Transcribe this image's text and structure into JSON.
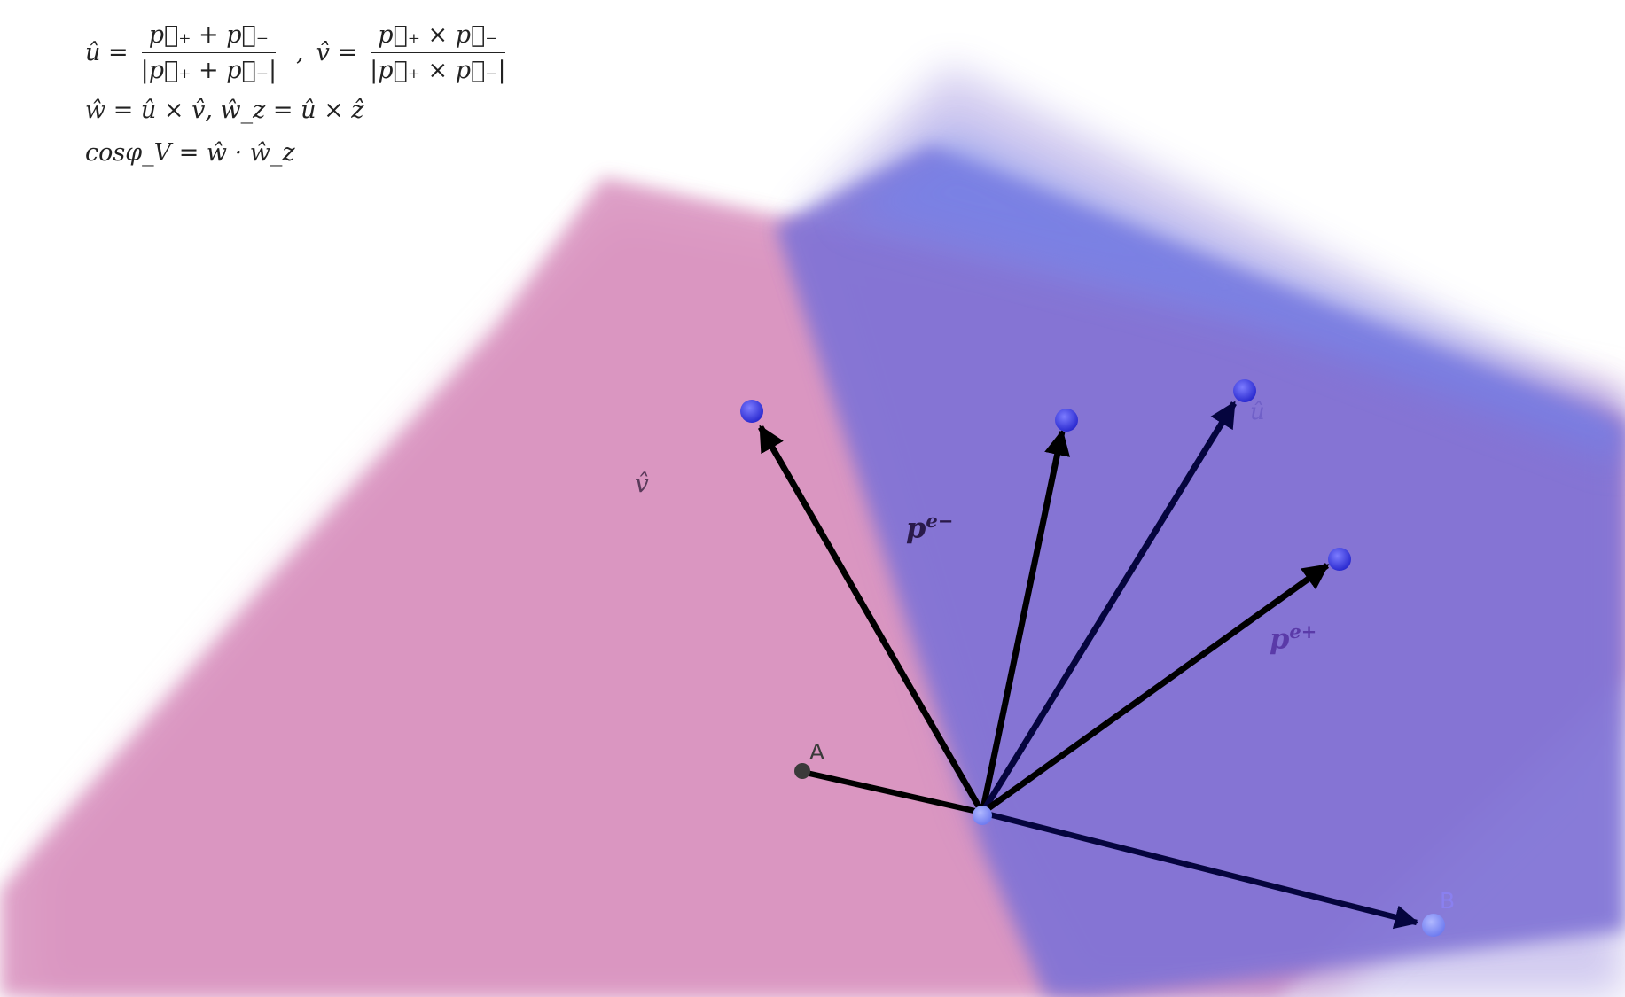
{
  "formulas": {
    "u_lhs": "û =",
    "u_num": "p⃗₊ + p⃗₋",
    "u_den": "|p⃗₊ + p⃗₋|",
    "sep": ",",
    "v_lhs": "v̂ =",
    "v_num": "p⃗₊ × p⃗₋",
    "v_den": "|p⃗₊ × p⃗₋|",
    "w_line": "ŵ = û × v̂, ŵ_z = û × ẑ",
    "cos_line": "cosφ_V = ŵ · ŵ_z"
  },
  "labels": {
    "v_hat": "v̂",
    "u_hat": "û",
    "p_em": "p",
    "p_em_sup": "e−",
    "p_ep": "p",
    "p_ep_sup": "e+",
    "point_a": "A",
    "point_b": "B"
  },
  "colors": {
    "pink_plane": "#d88fbd",
    "blue_plane": "#7f6cd4",
    "vector": "#000000",
    "dark_vector": "#0b0b5a",
    "point": "#3f3fe6",
    "label_a": "#3a3a3a",
    "label_b": "#8a80f0"
  }
}
